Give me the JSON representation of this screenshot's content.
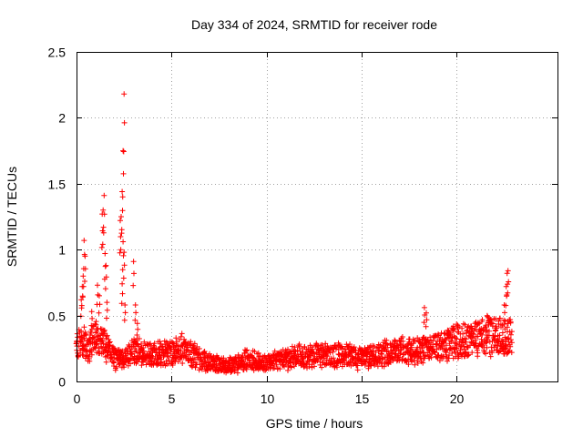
{
  "chart_data": {
    "type": "scatter",
    "title": "Day 334 of 2024, SRMTID for receiver rode",
    "xlabel": "GPS time / hours",
    "ylabel": "SRMTID / TECUs",
    "xlim": [
      0,
      25.3
    ],
    "ylim": [
      0,
      2.5
    ],
    "xticks": [
      0,
      5,
      10,
      15,
      20
    ],
    "yticks": [
      0,
      0.5,
      1,
      1.5,
      2,
      2.5
    ],
    "xtick_labels": [
      "0",
      "5",
      "10",
      "15",
      "20"
    ],
    "ytick_labels": [
      "0",
      "0.5",
      "1",
      "1.5",
      "2",
      "2.5"
    ],
    "grid": true,
    "marker": "+",
    "color": "#ff0000",
    "series": [
      {
        "name": "SRMTID",
        "trend": [
          [
            0.0,
            0.28
          ],
          [
            0.3,
            0.3
          ],
          [
            0.6,
            0.26
          ],
          [
            1.0,
            0.33
          ],
          [
            1.4,
            0.28
          ],
          [
            2.0,
            0.17
          ],
          [
            2.5,
            0.18
          ],
          [
            3.0,
            0.24
          ],
          [
            3.5,
            0.22
          ],
          [
            4.0,
            0.2
          ],
          [
            5.0,
            0.21
          ],
          [
            5.5,
            0.25
          ],
          [
            6.0,
            0.22
          ],
          [
            6.5,
            0.17
          ],
          [
            7.0,
            0.14
          ],
          [
            8.0,
            0.12
          ],
          [
            8.5,
            0.13
          ],
          [
            9.0,
            0.17
          ],
          [
            9.5,
            0.14
          ],
          [
            10.0,
            0.15
          ],
          [
            11.0,
            0.17
          ],
          [
            12.0,
            0.2
          ],
          [
            13.0,
            0.19
          ],
          [
            14.0,
            0.2
          ],
          [
            15.0,
            0.18
          ],
          [
            16.0,
            0.21
          ],
          [
            17.0,
            0.23
          ],
          [
            18.0,
            0.24
          ],
          [
            19.0,
            0.25
          ],
          [
            20.0,
            0.3
          ],
          [
            21.0,
            0.32
          ],
          [
            22.0,
            0.36
          ],
          [
            22.9,
            0.33
          ]
        ],
        "spikes": [
          [
            0.25,
            0.62
          ],
          [
            0.3,
            0.72
          ],
          [
            0.35,
            0.8
          ],
          [
            0.4,
            1.07
          ],
          [
            0.45,
            0.95
          ],
          [
            0.8,
            0.53
          ],
          [
            1.1,
            0.73
          ],
          [
            1.2,
            0.65
          ],
          [
            1.35,
            1.27
          ],
          [
            1.4,
            1.3
          ],
          [
            1.45,
            1.41
          ],
          [
            1.5,
            0.97
          ],
          [
            1.55,
            0.88
          ],
          [
            1.6,
            0.6
          ],
          [
            2.3,
            1.22
          ],
          [
            2.35,
            1.25
          ],
          [
            2.4,
            1.44
          ],
          [
            2.45,
            1.75
          ],
          [
            2.5,
            2.18
          ],
          [
            2.45,
            1.06
          ],
          [
            2.5,
            0.98
          ],
          [
            2.4,
            0.74
          ],
          [
            2.55,
            0.58
          ],
          [
            3.0,
            0.91
          ],
          [
            3.1,
            0.58
          ],
          [
            3.2,
            0.44
          ],
          [
            18.3,
            0.56
          ],
          [
            18.4,
            0.52
          ],
          [
            22.5,
            0.58
          ],
          [
            22.6,
            0.72
          ],
          [
            22.65,
            0.82
          ],
          [
            22.7,
            0.84
          ]
        ],
        "x_range": [
          0.0,
          22.9
        ],
        "sample_interval_hours": 0.03
      }
    ]
  }
}
